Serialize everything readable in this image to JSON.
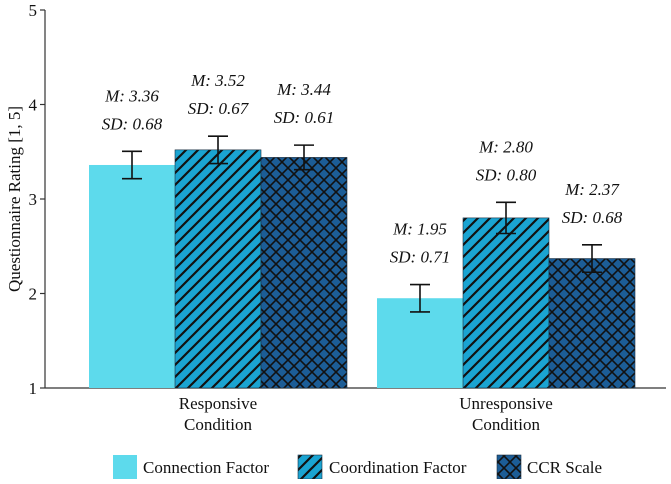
{
  "chart_data": {
    "type": "bar",
    "ylabel": "Questionnaire Rating [1, 5]",
    "xlabel": "",
    "ylim": [
      1,
      5
    ],
    "yticks": [
      1,
      2,
      3,
      4,
      5
    ],
    "grid": false,
    "legend_position": "bottom",
    "categories": [
      [
        "Responsive",
        "Condition"
      ],
      [
        "Unresponsive",
        "Condition"
      ]
    ],
    "series": [
      {
        "name": "Connection Factor",
        "values": [
          3.36,
          1.95
        ],
        "error": [
          0.145,
          0.145
        ],
        "annotations": [
          [
            "M: 3.36",
            "SD: 0.68"
          ],
          [
            "M: 1.95",
            "SD: 0.71"
          ]
        ],
        "fill": "#5ddaec",
        "pattern": "none"
      },
      {
        "name": "Coordination Factor",
        "values": [
          3.52,
          2.8
        ],
        "error": [
          0.145,
          0.165
        ],
        "annotations": [
          [
            "M: 3.52",
            "SD: 0.67"
          ],
          [
            "M: 2.80",
            "SD: 0.80"
          ]
        ],
        "fill": "#1aa4d2",
        "pattern": "diagonal"
      },
      {
        "name": "CCR Scale",
        "values": [
          3.44,
          2.37
        ],
        "error": [
          0.13,
          0.145
        ],
        "annotations": [
          [
            "M: 3.44",
            "SD: 0.61"
          ],
          [
            "M: 2.37",
            "SD: 0.68"
          ]
        ],
        "fill": "#1c5d96",
        "pattern": "crosshatch"
      }
    ]
  }
}
